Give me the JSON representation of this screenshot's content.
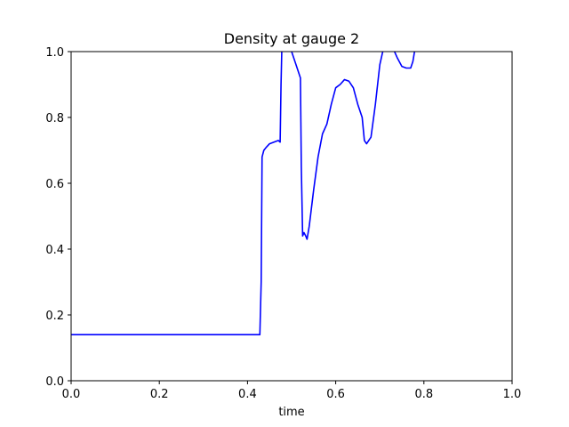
{
  "chart_data": {
    "type": "line",
    "title": "Density at gauge 2",
    "xlabel": "time",
    "ylabel": "",
    "xlim": [
      0,
      1
    ],
    "ylim": [
      0,
      1
    ],
    "grid": false,
    "x_ticks": [
      "0.0",
      "0.2",
      "0.4",
      "0.6",
      "0.8",
      "1.0"
    ],
    "y_ticks": [
      "0.0",
      "0.2",
      "0.4",
      "0.6",
      "0.8",
      "1.0"
    ],
    "series": [
      {
        "color": "#0000ff",
        "x": [
          0.0,
          0.1,
          0.2,
          0.3,
          0.4,
          0.428,
          0.431,
          0.433,
          0.437,
          0.443,
          0.45,
          0.46,
          0.47,
          0.474,
          0.476,
          0.478,
          0.48,
          0.49,
          0.5,
          0.51,
          0.52,
          0.522,
          0.525,
          0.528,
          0.532,
          0.535,
          0.54,
          0.55,
          0.56,
          0.57,
          0.58,
          0.59,
          0.6,
          0.61,
          0.62,
          0.63,
          0.64,
          0.65,
          0.66,
          0.665,
          0.67,
          0.68,
          0.69,
          0.7,
          0.71,
          0.72,
          0.73,
          0.74,
          0.75,
          0.76,
          0.77,
          0.775,
          0.78
        ],
        "y": [
          0.14,
          0.14,
          0.14,
          0.14,
          0.14,
          0.14,
          0.3,
          0.68,
          0.7,
          0.71,
          0.72,
          0.725,
          0.73,
          0.725,
          0.9,
          1.02,
          1.02,
          1.02,
          1.0,
          0.96,
          0.92,
          0.65,
          0.44,
          0.45,
          0.44,
          0.43,
          0.47,
          0.58,
          0.68,
          0.75,
          0.78,
          0.84,
          0.89,
          0.9,
          0.915,
          0.91,
          0.89,
          0.84,
          0.8,
          0.73,
          0.72,
          0.74,
          0.84,
          0.96,
          1.02,
          1.02,
          1.01,
          0.98,
          0.955,
          0.95,
          0.95,
          0.97,
          1.01
        ]
      }
    ]
  }
}
